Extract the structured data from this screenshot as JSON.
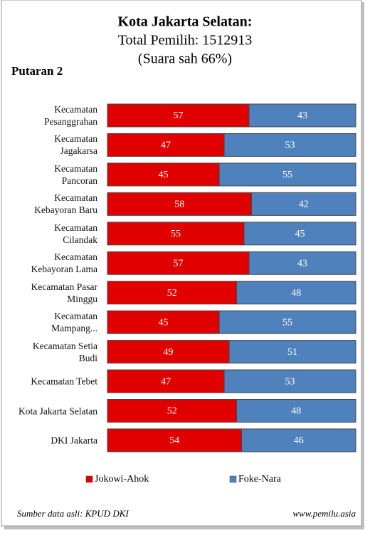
{
  "chart_data": {
    "type": "stacked-bar-horizontal",
    "title": "Kota Jakarta Selatan:",
    "subtitle_lines": [
      "Total Pemilih: 1512913",
      "(Suara sah 66%)"
    ],
    "round_label": "Putaran 2",
    "categories": [
      "Kecamatan Pesanggrahan",
      "Kecamatan Jagakarsa",
      "Kecamatan Pancoran",
      "Kecamatan Kebayoran Baru",
      "Kecamatan Cilandak",
      "Kecamatan Kebayoran Lama",
      "Kecamatan Pasar Minggu",
      "Kecamatan Mampang...",
      "Kecamatan Setia Budi",
      "Kecamatan Tebet",
      "Kota Jakarta Selatan",
      "DKI Jakarta"
    ],
    "series": [
      {
        "name": "Jokowi-Ahok",
        "color": "#e00000",
        "values": [
          57,
          47,
          45,
          58,
          55,
          57,
          52,
          45,
          49,
          47,
          52,
          54
        ]
      },
      {
        "name": "Foke-Nara",
        "color": "#4f81bd",
        "values": [
          43,
          53,
          55,
          42,
          45,
          43,
          48,
          55,
          51,
          53,
          48,
          46
        ]
      }
    ],
    "xlim": [
      0,
      100
    ],
    "legend": "bottom",
    "source": "Sumber data asli: KPUD DKI",
    "website": "www.pemilu.asia"
  }
}
